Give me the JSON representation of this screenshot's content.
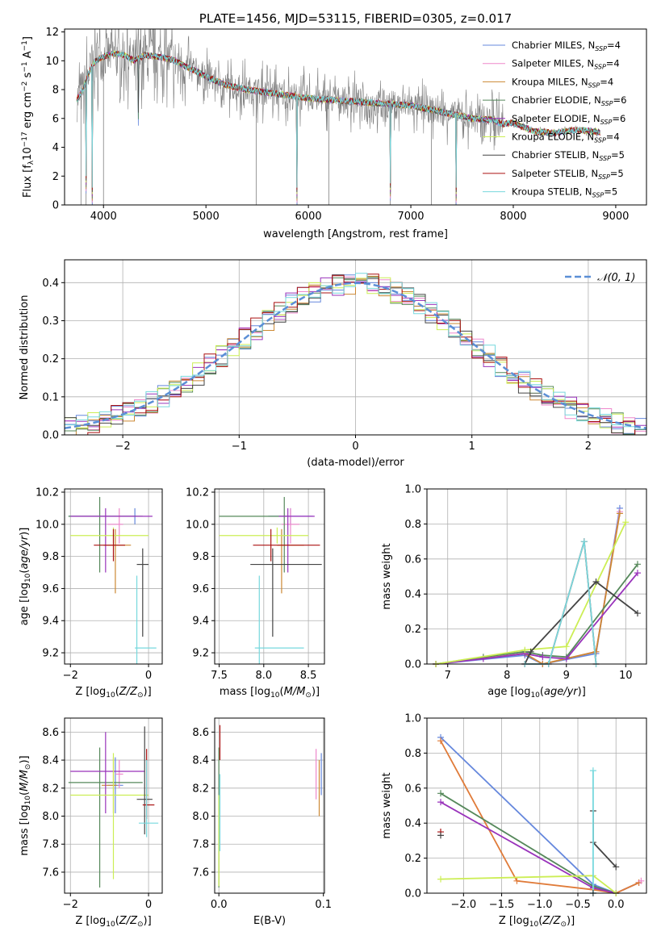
{
  "colors": {
    "chabrier_miles": "#6688dd",
    "salpeter_miles": "#ee88cc",
    "kroupa_miles": "#cc8833",
    "chabrier_elodie": "#55885a",
    "salpeter_elodie": "#9933bb",
    "kroupa_elodie": "#ccee55",
    "chabrier_stelib": "#444444",
    "salpeter_stelib": "#aa1111",
    "kroupa_stelib": "#77d8dd",
    "orange_line": "#e07b39",
    "data": "#808080",
    "grid": "#b0b0b0",
    "gaussian": "#5b8fd6"
  },
  "legend": [
    {
      "text": "Chabrier MILES, N",
      "sub": "SSP",
      "tail": "=4",
      "color": "chabrier_miles"
    },
    {
      "text": "Salpeter MILES, N",
      "sub": "SSP",
      "tail": "=4",
      "color": "salpeter_miles"
    },
    {
      "text": "Kroupa MILES, N",
      "sub": "SSP",
      "tail": "=4",
      "color": "kroupa_miles"
    },
    {
      "text": "Chabrier ELODIE, N",
      "sub": "SSP",
      "tail": "=6",
      "color": "chabrier_elodie"
    },
    {
      "text": "Salpeter ELODIE, N",
      "sub": "SSP",
      "tail": "=6",
      "color": "salpeter_elodie"
    },
    {
      "text": "Kroupa ELODIE, N",
      "sub": "SSP",
      "tail": "=4",
      "color": "kroupa_elodie"
    },
    {
      "text": "Chabrier STELIB, N",
      "sub": "SSP",
      "tail": "=5",
      "color": "chabrier_stelib"
    },
    {
      "text": "Salpeter STELIB, N",
      "sub": "SSP",
      "tail": "=5",
      "color": "salpeter_stelib"
    },
    {
      "text": "Kroupa STELIB, N",
      "sub": "SSP",
      "tail": "=5",
      "color": "kroupa_stelib"
    }
  ],
  "chart_data": [
    {
      "id": "spectrum",
      "type": "line",
      "title": "PLATE=1456, MJD=53115, FIBERID=0305, z=0.017",
      "xlabel": "wavelength [Angstrom, rest frame]",
      "ylabel": "Flux [fλ10^-17 erg cm^-2 s^-1 A^-1]",
      "xlim": [
        3620,
        9300
      ],
      "ylim": [
        0,
        12.2
      ],
      "xticks": [
        4000,
        5000,
        6000,
        7000,
        8000,
        9000
      ],
      "yticks": [
        0,
        2,
        4,
        6,
        8,
        10,
        12
      ],
      "grid": false,
      "legend_position": "top-right",
      "model_continuum": {
        "x": [
          3740,
          3800,
          3850,
          3900,
          3950,
          4000,
          4100,
          4200,
          4300,
          4400,
          4500,
          4600,
          4700,
          4800,
          4900,
          5000,
          5200,
          5400,
          5600,
          5800,
          6000,
          6200,
          6400,
          6600,
          6800,
          7000,
          7200,
          7400,
          7600,
          7800,
          7900,
          8000,
          8100,
          8200,
          8400,
          8600,
          8800,
          8850
        ],
        "y": [
          7.3,
          8.0,
          9.0,
          9.8,
          10.1,
          10.3,
          10.5,
          10.4,
          10.0,
          10.4,
          10.3,
          10.2,
          10.0,
          9.6,
          9.3,
          8.9,
          8.3,
          8.0,
          7.8,
          7.6,
          7.4,
          7.3,
          7.2,
          7.1,
          7.0,
          6.9,
          6.6,
          6.3,
          6.0,
          5.9,
          5.6,
          5.7,
          5.4,
          5.1,
          5.0,
          5.2,
          5.1,
          5.0
        ]
      },
      "absorption_lines": [
        {
          "x": 3830,
          "depth": 0.8
        },
        {
          "x": 3890,
          "depth": 0.0
        },
        {
          "x": 4340,
          "depth": 5.5
        },
        {
          "x": 5890,
          "depth": 0.0
        },
        {
          "x": 6800,
          "depth": 0.3
        },
        {
          "x": 7440,
          "depth": 0.0
        }
      ],
      "noise_cutoff": 7900
    },
    {
      "id": "residuals",
      "type": "histogram",
      "xlabel": "(data-model)/error",
      "ylabel": "Normed distribution",
      "xlim": [
        -2.5,
        2.5
      ],
      "ylim": [
        0,
        0.46
      ],
      "xticks": [
        -2,
        -1,
        0,
        1,
        2
      ],
      "yticks": [
        0.0,
        0.1,
        0.2,
        0.3,
        0.4
      ],
      "grid": true,
      "legend_position": "top-right",
      "legend_label": "𝒩(0, 1)",
      "bin_width": 0.1,
      "gaussian": {
        "mean": 0,
        "sigma": 1
      }
    },
    {
      "id": "age_vs_Z",
      "type": "errorbar",
      "xlabel": "Z [log10(Z/Z⊙)]",
      "ylabel": "age  [log10(age/yr)]",
      "xlim": [
        -2.15,
        0.35
      ],
      "ylim": [
        9.13,
        10.22
      ],
      "xticks": [
        -2,
        0
      ],
      "yticks": [
        9.2,
        9.4,
        9.6,
        9.8,
        10.0,
        10.2
      ],
      "grid": true,
      "points": [
        {
          "color": "chabrier_miles",
          "x": -0.35,
          "xerr": [
            1.7,
            0.05
          ],
          "y": 10.05,
          "yerr": [
            0.05,
            0.05
          ]
        },
        {
          "color": "salpeter_miles",
          "x": -0.75,
          "xerr": [
            0.3,
            0.1
          ],
          "y": 10.0,
          "yerr": [
            0.12,
            0.1
          ]
        },
        {
          "color": "kroupa_miles",
          "x": -0.85,
          "xerr": [
            0.3,
            0.4
          ],
          "y": 9.87,
          "yerr": [
            0.3,
            0.1
          ]
        },
        {
          "color": "chabrier_elodie",
          "x": -1.25,
          "xerr": [
            0.8,
            1.1
          ],
          "y": 10.05,
          "yerr": [
            0.35,
            0.12
          ]
        },
        {
          "color": "salpeter_elodie",
          "x": -1.1,
          "xerr": [
            0.9,
            1.2
          ],
          "y": 10.05,
          "yerr": [
            0.35,
            0.05
          ]
        },
        {
          "color": "kroupa_elodie",
          "x": -0.9,
          "xerr": [
            1.1,
            0.9
          ],
          "y": 9.93,
          "yerr": [
            0.05,
            0.05
          ]
        },
        {
          "color": "chabrier_stelib",
          "x": -0.15,
          "xerr": [
            0.15,
            0.15
          ],
          "y": 9.75,
          "yerr": [
            0.45,
            0.1
          ]
        },
        {
          "color": "salpeter_stelib",
          "x": -0.9,
          "xerr": [
            0.5,
            0.3
          ],
          "y": 9.87,
          "yerr": [
            0.1,
            0.1
          ]
        },
        {
          "color": "kroupa_stelib",
          "x": -0.3,
          "xerr": [
            0.05,
            0.5
          ],
          "y": 9.23,
          "yerr": [
            0.1,
            0.45
          ]
        }
      ]
    },
    {
      "id": "age_vs_mass",
      "type": "errorbar",
      "xlabel": "mass [log10(M/M⊙)]",
      "ylabel": "",
      "xlim": [
        7.45,
        8.68
      ],
      "ylim": [
        9.13,
        10.22
      ],
      "xticks": [
        7.5,
        8.0,
        8.5
      ],
      "yticks": [
        9.2,
        9.4,
        9.6,
        9.8,
        10.0,
        10.2
      ],
      "grid": true,
      "points": [
        {
          "color": "chabrier_miles",
          "x": 8.3,
          "xerr": [
            0.25,
            0.25
          ],
          "y": 10.05,
          "yerr": [
            0.05,
            0.05
          ]
        },
        {
          "color": "salpeter_miles",
          "x": 8.3,
          "xerr": [
            0.1,
            0.1
          ],
          "y": 10.0,
          "yerr": [
            0.12,
            0.1
          ]
        },
        {
          "color": "kroupa_miles",
          "x": 8.2,
          "xerr": [
            0.05,
            0.25
          ],
          "y": 9.87,
          "yerr": [
            0.3,
            0.1
          ]
        },
        {
          "color": "chabrier_elodie",
          "x": 8.23,
          "xerr": [
            0.73,
            0.05
          ],
          "y": 10.05,
          "yerr": [
            0.35,
            0.12
          ]
        },
        {
          "color": "salpeter_elodie",
          "x": 8.27,
          "xerr": [
            0.1,
            0.3
          ],
          "y": 10.05,
          "yerr": [
            0.35,
            0.05
          ]
        },
        {
          "color": "kroupa_elodie",
          "x": 8.15,
          "xerr": [
            0.65,
            0.35
          ],
          "y": 9.93,
          "yerr": [
            0.05,
            0.05
          ]
        },
        {
          "color": "chabrier_stelib",
          "x": 8.1,
          "xerr": [
            0.25,
            0.55
          ],
          "y": 9.75,
          "yerr": [
            0.45,
            0.1
          ]
        },
        {
          "color": "salpeter_stelib",
          "x": 8.08,
          "xerr": [
            0.2,
            0.55
          ],
          "y": 9.87,
          "yerr": [
            0.1,
            0.1
          ]
        },
        {
          "color": "kroupa_stelib",
          "x": 7.95,
          "xerr": [
            0.05,
            0.5
          ],
          "y": 9.23,
          "yerr": [
            0.1,
            0.45
          ]
        }
      ]
    },
    {
      "id": "mass_weight_vs_age",
      "type": "line",
      "xlabel": "age  [log10(age/yr)]",
      "ylabel": "mass weight",
      "xlim": [
        6.65,
        10.35
      ],
      "ylim": [
        0,
        1
      ],
      "xticks": [
        7,
        8,
        9,
        10
      ],
      "yticks": [
        0.0,
        0.2,
        0.4,
        0.6,
        0.8,
        1.0
      ],
      "grid": true,
      "series": [
        {
          "color": "chabrier_miles",
          "x": [
            6.8,
            8.3,
            8.6,
            9.5,
            9.9
          ],
          "y": [
            0.0,
            0.05,
            0.0,
            0.06,
            0.89
          ]
        },
        {
          "color": "salpeter_miles",
          "x": [
            6.8,
            8.3,
            8.6,
            9.5,
            9.9
          ],
          "y": [
            0.0,
            0.06,
            0.0,
            0.07,
            0.87
          ]
        },
        {
          "color": "kroupa_miles",
          "x": [
            6.8,
            8.3,
            8.6,
            9.5,
            9.9
          ],
          "y": [
            0.0,
            0.06,
            0.0,
            0.07,
            0.86
          ]
        },
        {
          "color": "chabrier_elodie",
          "x": [
            6.8,
            7.6,
            8.3,
            8.6,
            9.0,
            10.2
          ],
          "y": [
            0.0,
            0.04,
            0.07,
            0.05,
            0.04,
            0.57
          ]
        },
        {
          "color": "salpeter_elodie",
          "x": [
            6.8,
            7.6,
            8.3,
            8.6,
            9.0,
            10.2
          ],
          "y": [
            0.0,
            0.03,
            0.06,
            0.04,
            0.03,
            0.52
          ]
        },
        {
          "color": "kroupa_elodie",
          "x": [
            6.8,
            8.3,
            9.0,
            10.0
          ],
          "y": [
            0.0,
            0.08,
            0.1,
            0.81
          ]
        },
        {
          "color": "chabrier_stelib",
          "x": [
            8.3,
            8.4,
            9.5,
            10.2
          ],
          "y": [
            0.0,
            0.07,
            0.47,
            0.29
          ]
        },
        {
          "color": "salpeter_stelib",
          "x": [
            8.3,
            8.7,
            9.3,
            9.5
          ],
          "y": [
            0.0,
            0.0,
            0.7,
            0.0
          ]
        },
        {
          "color": "kroupa_stelib",
          "x": [
            8.3,
            8.7,
            9.3,
            9.5
          ],
          "y": [
            0.0,
            0.0,
            0.7,
            0.0
          ]
        }
      ]
    },
    {
      "id": "mass_vs_Z",
      "type": "errorbar",
      "xlabel": "Z [log10(Z/Z⊙)]",
      "ylabel": "mass [log10(M/M⊙)]",
      "xlim": [
        -2.15,
        0.35
      ],
      "ylim": [
        7.45,
        8.7
      ],
      "xticks": [
        -2,
        0
      ],
      "yticks": [
        7.6,
        7.8,
        8.0,
        8.2,
        8.4,
        8.6
      ],
      "grid": true,
      "points": [
        {
          "color": "chabrier_miles",
          "x": -0.85,
          "xerr": [
            0.2,
            0.2
          ],
          "y": 8.22,
          "yerr": [
            0.2,
            0.2
          ]
        },
        {
          "color": "salpeter_miles",
          "x": -0.75,
          "xerr": [
            0.1,
            0.1
          ],
          "y": 8.3,
          "yerr": [
            0.1,
            0.1
          ]
        },
        {
          "color": "kroupa_miles",
          "x": -0.9,
          "xerr": [
            0.3,
            0.1
          ],
          "y": 8.22,
          "yerr": [
            0.2,
            0.2
          ]
        },
        {
          "color": "chabrier_elodie",
          "x": -1.25,
          "xerr": [
            0.8,
            1.1
          ],
          "y": 8.24,
          "yerr": [
            0.75,
            0.25
          ]
        },
        {
          "color": "salpeter_elodie",
          "x": -1.1,
          "xerr": [
            0.9,
            1.0
          ],
          "y": 8.32,
          "yerr": [
            0.3,
            0.28
          ]
        },
        {
          "color": "kroupa_elodie",
          "x": -0.9,
          "xerr": [
            1.1,
            0.9
          ],
          "y": 8.15,
          "yerr": [
            0.6,
            0.3
          ]
        },
        {
          "color": "chabrier_stelib",
          "x": -0.1,
          "xerr": [
            0.2,
            0.2
          ],
          "y": 8.12,
          "yerr": [
            0.25,
            0.52
          ]
        },
        {
          "color": "salpeter_stelib",
          "x": -0.05,
          "xerr": [
            0.1,
            0.2
          ],
          "y": 8.08,
          "yerr": [
            0.1,
            0.4
          ]
        },
        {
          "color": "kroupa_stelib",
          "x": -0.05,
          "xerr": [
            0.2,
            0.3
          ],
          "y": 7.95,
          "yerr": [
            0.1,
            0.45
          ]
        }
      ]
    },
    {
      "id": "mass_vs_EBV",
      "type": "errorbar",
      "xlabel": "E(B-V)",
      "ylabel": "",
      "xlim": [
        -0.004,
        0.101
      ],
      "ylim": [
        7.45,
        8.7
      ],
      "xticks": [
        0.0,
        0.1
      ],
      "yticks": [
        7.6,
        7.8,
        8.0,
        8.2,
        8.4,
        8.6
      ],
      "grid": true,
      "points": [
        {
          "color": "salpeter_miles",
          "x": 0.093,
          "xerr": [
            0,
            0
          ],
          "y": 8.3,
          "yerr": [
            0.18,
            0.18
          ]
        },
        {
          "color": "kroupa_miles",
          "x": 0.096,
          "xerr": [
            0,
            0
          ],
          "y": 8.2,
          "yerr": [
            0.2,
            0.2
          ]
        },
        {
          "color": "chabrier_miles",
          "x": 0.098,
          "xerr": [
            0,
            0
          ],
          "y": 8.3,
          "yerr": [
            0.15,
            0.15
          ]
        },
        {
          "color": "chabrier_elodie",
          "x": 0.0,
          "xerr": [
            0,
            0
          ],
          "y": 8.24,
          "yerr": [
            0.75,
            0.25
          ]
        },
        {
          "color": "salpeter_stelib",
          "x": 0.001,
          "xerr": [
            0,
            0
          ],
          "y": 8.5,
          "yerr": [
            0.1,
            0.15
          ]
        },
        {
          "color": "kroupa_elodie",
          "x": 0.0,
          "xerr": [
            0,
            0
          ],
          "y": 7.75,
          "yerr": [
            0.25,
            0.4
          ]
        },
        {
          "color": "kroupa_stelib",
          "x": 0.001,
          "xerr": [
            0,
            0
          ],
          "y": 7.9,
          "yerr": [
            0.15,
            0.4
          ]
        }
      ]
    },
    {
      "id": "mass_weight_vs_Z",
      "type": "line",
      "xlabel": "Z [log10(Z/Z⊙)]",
      "ylabel": "mass weight",
      "xlim": [
        -2.48,
        0.4
      ],
      "ylim": [
        0,
        1
      ],
      "xticks": [
        -2.0,
        -1.5,
        -1.0,
        -0.5,
        0.0
      ],
      "yticks": [
        0.0,
        0.2,
        0.4,
        0.6,
        0.8,
        1.0
      ],
      "grid": true,
      "series": [
        {
          "color": "chabrier_miles",
          "x": [
            -2.3,
            -0.3,
            0.0,
            0.3
          ],
          "y": [
            0.89,
            0.05,
            0.0,
            0.06
          ]
        },
        {
          "color": "orange_line",
          "x": [
            -2.3,
            -1.3,
            -0.3,
            0.0,
            0.3
          ],
          "y": [
            0.87,
            0.07,
            0.02,
            0.0,
            0.06
          ]
        },
        {
          "color": "chabrier_elodie",
          "x": [
            -2.3,
            -0.3,
            0.0
          ],
          "y": [
            0.57,
            0.04,
            0.0
          ]
        },
        {
          "color": "salpeter_elodie",
          "x": [
            -2.3,
            -0.3,
            0.0
          ],
          "y": [
            0.52,
            0.03,
            0.0
          ]
        },
        {
          "color": "kroupa_elodie",
          "x": [
            -2.3,
            -0.3,
            0.0
          ],
          "y": [
            0.08,
            0.1,
            0.0
          ]
        },
        {
          "color": "chabrier_stelib",
          "x": [
            -0.3,
            -0.3,
            0.0
          ],
          "y": [
            0.47,
            0.29,
            0.15
          ]
        },
        {
          "color": "kroupa_stelib",
          "x": [
            -0.3,
            -0.3
          ],
          "y": [
            0.7,
            0.0
          ]
        }
      ],
      "markers": [
        {
          "color": "salpeter_stelib",
          "x": -2.3,
          "y": 0.35
        },
        {
          "color": "chabrier_stelib",
          "x": -2.3,
          "y": 0.33
        },
        {
          "color": "chabrier_stelib",
          "x": -0.3,
          "y": 0.0
        },
        {
          "color": "salpeter_miles",
          "x": 0.33,
          "y": 0.07
        }
      ]
    }
  ]
}
